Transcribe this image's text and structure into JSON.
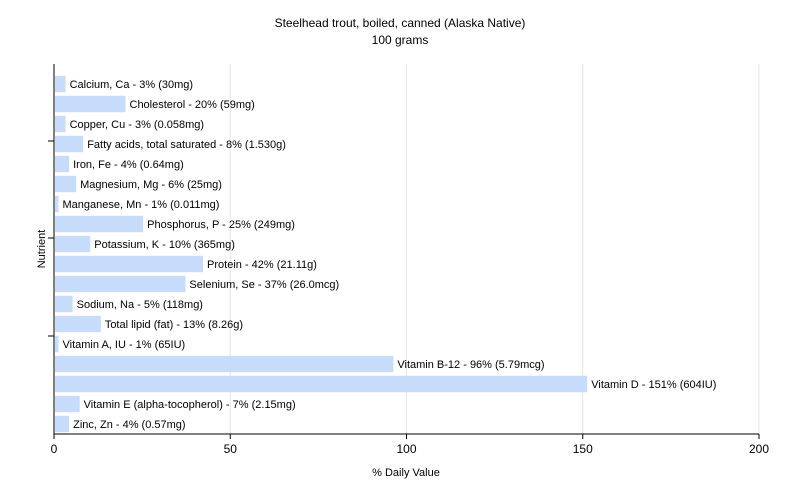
{
  "chart_data": {
    "type": "bar",
    "orientation": "horizontal",
    "title": "Steelhead trout, boiled, canned (Alaska Native)",
    "subtitle": "100 grams",
    "xlabel": "% Daily Value",
    "ylabel": "Nutrient",
    "xlim": [
      0,
      200
    ],
    "xticks": [
      0,
      50,
      100,
      150,
      200
    ],
    "grid": true,
    "bar_color": "#c6dcfa",
    "categories": [
      "Calcium, Ca",
      "Cholesterol",
      "Copper, Cu",
      "Fatty acids, total saturated",
      "Iron, Fe",
      "Magnesium, Mg",
      "Manganese, Mn",
      "Phosphorus, P",
      "Potassium, K",
      "Protein",
      "Selenium, Se",
      "Sodium, Na",
      "Total lipid (fat)",
      "Vitamin A, IU",
      "Vitamin B-12",
      "Vitamin D",
      "Vitamin E (alpha-tocopherol)",
      "Zinc, Zn"
    ],
    "values": [
      3,
      20,
      3,
      8,
      4,
      6,
      1,
      25,
      10,
      42,
      37,
      5,
      13,
      1,
      96,
      151,
      7,
      4
    ],
    "labels": [
      "Calcium, Ca - 3% (30mg)",
      "Cholesterol - 20% (59mg)",
      "Copper, Cu - 3% (0.058mg)",
      "Fatty acids, total saturated - 8% (1.530g)",
      "Iron, Fe - 4% (0.64mg)",
      "Magnesium, Mg - 6% (25mg)",
      "Manganese, Mn - 1% (0.011mg)",
      "Phosphorus, P - 25% (249mg)",
      "Potassium, K - 10% (365mg)",
      "Protein - 42% (21.11g)",
      "Selenium, Se - 37% (26.0mcg)",
      "Sodium, Na - 5% (118mg)",
      "Total lipid (fat) - 13% (8.26g)",
      "Vitamin A, IU - 1% (65IU)",
      "Vitamin B-12 - 96% (5.79mcg)",
      "Vitamin D - 151% (604IU)",
      "Vitamin E (alpha-tocopherol) - 7% (2.15mg)",
      "Zinc, Zn - 4% (0.57mg)"
    ]
  }
}
